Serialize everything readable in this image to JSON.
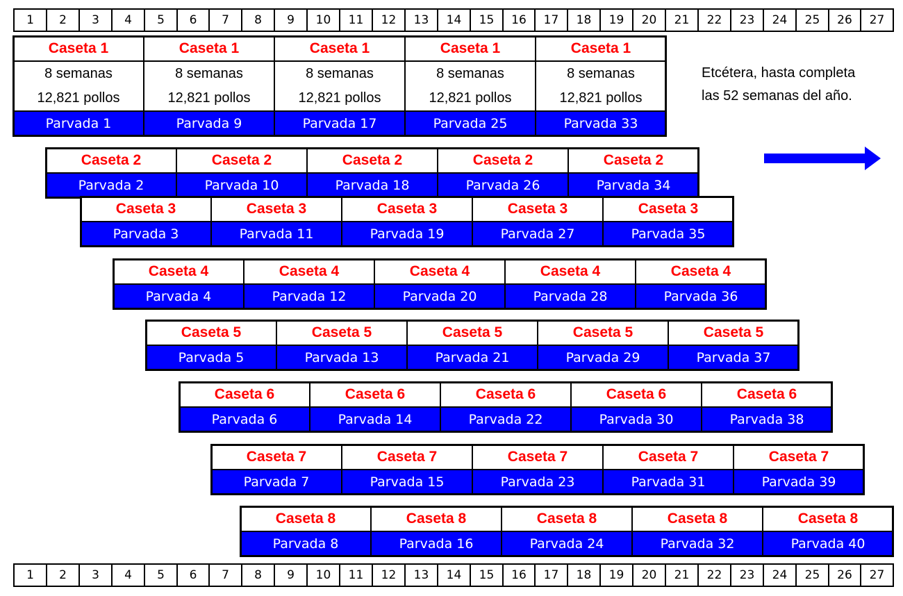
{
  "weeks_top": [
    "1",
    "2",
    "3",
    "4",
    "5",
    "6",
    "7",
    "8",
    "9",
    "10",
    "11",
    "12",
    "13",
    "14",
    "15",
    "16",
    "17",
    "18",
    "19",
    "20",
    "21",
    "22",
    "23",
    "24",
    "25",
    "26",
    "27"
  ],
  "weeks_bottom": [
    "1",
    "2",
    "3",
    "4",
    "5",
    "6",
    "7",
    "8",
    "9",
    "10",
    "11",
    "12",
    "13",
    "14",
    "15",
    "16",
    "17",
    "18",
    "19",
    "20",
    "21",
    "22",
    "23",
    "24",
    "25",
    "26",
    "27"
  ],
  "rows": [
    {
      "caseta": "Caseta 1",
      "duration": "8 semanas",
      "chickens": "12,821 pollos",
      "flocks": [
        "Parvada 1",
        "Parvada 9",
        "Parvada 17",
        "Parvada 25",
        "Parvada 33"
      ]
    },
    {
      "caseta": "Caseta 2",
      "flocks": [
        "Parvada 2",
        "Parvada 10",
        "Parvada 18",
        "Parvada 26",
        "Parvada 34"
      ]
    },
    {
      "caseta": "Caseta 3",
      "flocks": [
        "Parvada 3",
        "Parvada 11",
        "Parvada 19",
        "Parvada 27",
        "Parvada 35"
      ]
    },
    {
      "caseta": "Caseta 4",
      "flocks": [
        "Parvada 4",
        "Parvada 12",
        "Parvada 20",
        "Parvada 28",
        "Parvada 36"
      ]
    },
    {
      "caseta": "Caseta 5",
      "flocks": [
        "Parvada 5",
        "Parvada 13",
        "Parvada 21",
        "Parvada 29",
        "Parvada 37"
      ]
    },
    {
      "caseta": "Caseta 6",
      "flocks": [
        "Parvada 6",
        "Parvada 14",
        "Parvada 22",
        "Parvada 30",
        "Parvada 38"
      ]
    },
    {
      "caseta": "Caseta 7",
      "flocks": [
        "Parvada 7",
        "Parvada 15",
        "Parvada 23",
        "Parvada 31",
        "Parvada 39"
      ]
    },
    {
      "caseta": "Caseta 8",
      "flocks": [
        "Parvada 8",
        "Parvada 16",
        "Parvada 24",
        "Parvada 32",
        "Parvada 40"
      ]
    }
  ],
  "note_line1": "Etcétera, hasta completa",
  "note_line2": "las 52 semanas del año.",
  "colors": {
    "caseta_text": "#ff0000",
    "flock_fill": "#0000ff",
    "arrow": "#0000ff"
  },
  "arrow_icon": "right-arrow-icon"
}
